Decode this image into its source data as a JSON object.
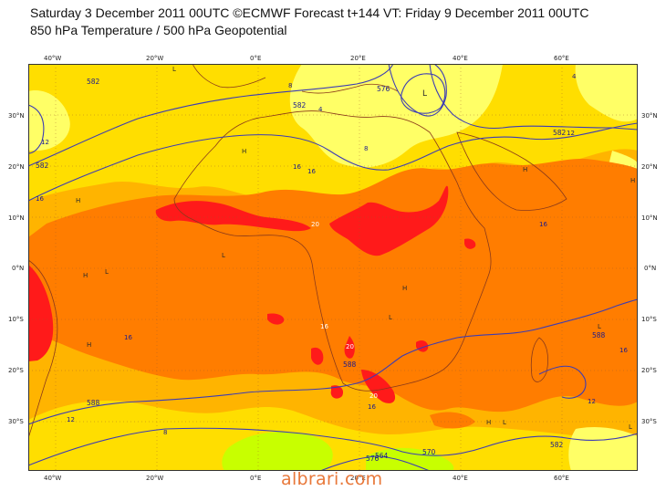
{
  "header": {
    "title_line1": "Saturday 3 December 2011 00UTC ©ECMWF Forecast t+144 VT: Friday 9 December 2011 00UTC",
    "title_line2": "850 hPa Temperature / 500 hPa Geopotential"
  },
  "map": {
    "lon_ticks_top": [
      "40°W",
      "20°W",
      "0°E",
      "20°E",
      "40°E",
      "60°E"
    ],
    "lon_ticks_bottom": [
      "40°W",
      "20°W",
      "0°E",
      "20°E",
      "40°E",
      "60°E"
    ],
    "lat_ticks_left": [
      "30°N",
      "20°N",
      "10°N",
      "0°N",
      "10°S",
      "20°S",
      "30°S"
    ],
    "lat_ticks_right": [
      "30°N",
      "20°N",
      "10°N",
      "0°N",
      "10°S",
      "20°S",
      "30°S"
    ],
    "contour_labels": [
      "582",
      "582",
      "582",
      "576",
      "582",
      "588",
      "588",
      "588",
      "582",
      "576",
      "570",
      "564"
    ],
    "isotherm_labels": [
      "12",
      "16",
      "16",
      "16",
      "16",
      "20",
      "20",
      "16",
      "16",
      "20",
      "16",
      "12",
      "8",
      "4",
      "4",
      "8",
      "8",
      "12",
      "12",
      "16"
    ],
    "pressure_marks": [
      "L",
      "H"
    ],
    "colors": {
      "pale_yellow": "#ffff66",
      "yellow": "#ffde00",
      "light_orange": "#ffb400",
      "orange": "#ff7d00",
      "red": "#ff1a1a",
      "lime": "#c8ff00",
      "contour_line": "#3c3cb4",
      "coast_line": "#8b3a1a"
    }
  },
  "footer": {
    "watermark": "albrari.com"
  }
}
